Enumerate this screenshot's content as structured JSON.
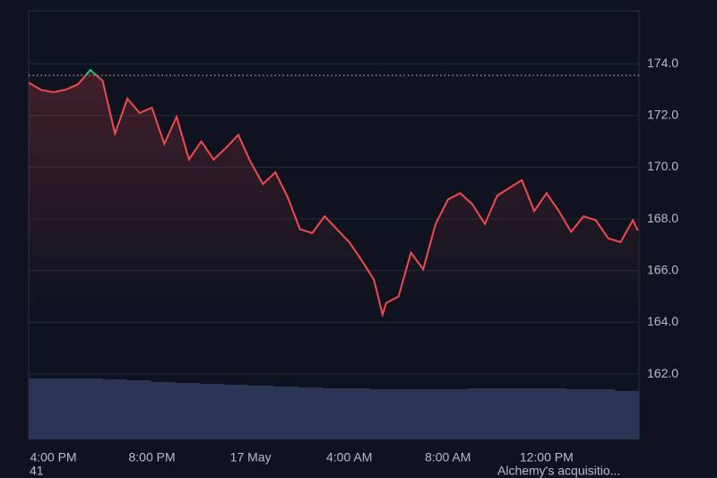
{
  "chart_data": {
    "type": "line",
    "x": [
      15,
      15.5,
      16,
      16.5,
      17,
      17.5,
      18,
      18.5,
      19,
      19.5,
      20,
      20.5,
      21,
      21.5,
      22,
      22.5,
      23,
      23.5,
      24,
      24.5,
      25,
      25.5,
      26,
      26.5,
      27,
      27.5,
      28,
      28.5,
      29,
      29.35,
      29.5,
      30,
      30.5,
      31,
      31.5,
      32,
      32.5,
      33,
      33.5,
      34,
      34.5,
      35,
      35.5,
      36,
      36.5,
      37,
      37.5,
      38,
      38.5,
      39,
      39.5,
      39.7
    ],
    "series": [
      {
        "color": "#f04a4f",
        "up_color": "#2ec27e",
        "values": [
          173.27,
          172.99,
          172.9,
          173.0,
          173.2,
          173.76,
          173.34,
          171.3,
          172.65,
          172.1,
          172.3,
          170.9,
          171.95,
          170.3,
          171.0,
          170.3,
          170.75,
          171.25,
          170.2,
          169.35,
          169.8,
          168.85,
          167.6,
          167.45,
          168.1,
          167.6,
          167.1,
          166.4,
          165.65,
          164.3,
          164.75,
          165.0,
          166.7,
          166.05,
          167.8,
          168.75,
          169.0,
          168.55,
          167.8,
          168.9,
          169.2,
          169.5,
          168.3,
          169.0,
          168.3,
          167.5,
          168.1,
          167.95,
          167.25,
          167.1,
          167.95,
          167.55
        ]
      }
    ],
    "reference_line": 173.55,
    "volume": {
      "x": [
        15,
        16,
        17,
        18,
        19,
        20,
        21,
        22,
        23,
        24,
        25,
        26,
        27,
        28,
        29,
        30,
        31,
        32,
        33,
        34,
        35,
        36,
        37,
        38,
        39
      ],
      "values": [
        68,
        68,
        68,
        67,
        66,
        64,
        63,
        62,
        61,
        60,
        59,
        58,
        57,
        57,
        56,
        56,
        56,
        56,
        57,
        57,
        57,
        57,
        56,
        56,
        54
      ],
      "color": "#2d3556"
    },
    "xlim": [
      15,
      39.75
    ],
    "xticks": [
      {
        "value": 16,
        "label": "4:00 PM"
      },
      {
        "value": 20,
        "label": "8:00 PM"
      },
      {
        "value": 24,
        "label": "17 May"
      },
      {
        "value": 28,
        "label": "4:00 AM"
      },
      {
        "value": 32,
        "label": "8:00 AM"
      },
      {
        "value": 36,
        "label": "12:00 PM"
      }
    ],
    "ylim": [
      159.47,
      176.05
    ],
    "yticks": [
      {
        "value": 162,
        "label": "162.0"
      },
      {
        "value": 164,
        "label": "164.0"
      },
      {
        "value": 166,
        "label": "166.0"
      },
      {
        "value": 168,
        "label": "168.0"
      },
      {
        "value": 170,
        "label": "170.0"
      },
      {
        "value": 172,
        "label": "172.0"
      },
      {
        "value": 174,
        "label": "174.0"
      }
    ],
    "grid": true
  },
  "footer": {
    "left": "41",
    "right": "Alchemy's acquisitio..."
  }
}
